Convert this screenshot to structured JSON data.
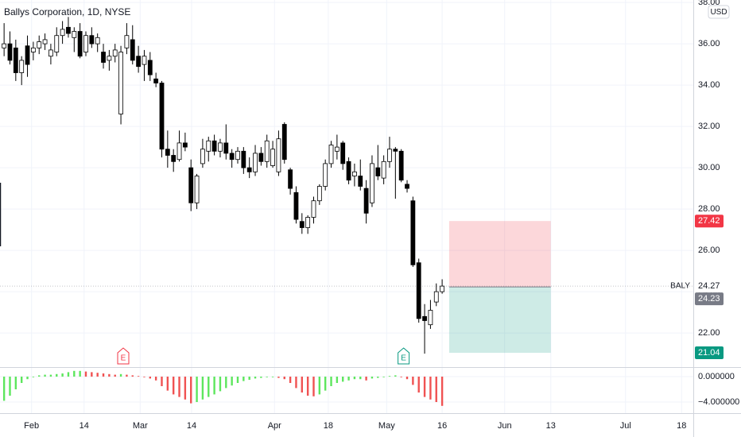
{
  "chart_data": [
    {
      "type": "candlestick",
      "title": "Ballys Corporation, 1D, NYSE",
      "currency": "USD",
      "symbol": "BALY",
      "last_price": 24.27,
      "up_color": "#ffffff",
      "down_color": "#000000",
      "outline_color": "#000000",
      "grid": true,
      "x": [
        0,
        1,
        2,
        3,
        4,
        5,
        6,
        7,
        8,
        9,
        10,
        11,
        12,
        13,
        14,
        15,
        16,
        17,
        18,
        19,
        20,
        21,
        22,
        23,
        24,
        25,
        26,
        27,
        28,
        29,
        30,
        31,
        32,
        33,
        34,
        35,
        36,
        37,
        38,
        39,
        40,
        41,
        42,
        43,
        44,
        45,
        46,
        47,
        48,
        49,
        50,
        51,
        52,
        53,
        54,
        55,
        56,
        57,
        58,
        59,
        60,
        61,
        62,
        63,
        64,
        65,
        66,
        67,
        68,
        69,
        70,
        71,
        72,
        73,
        74,
        75
      ],
      "open": [
        35.8,
        36.0,
        35.8,
        34.6,
        35.9,
        35.6,
        35.8,
        36.0,
        35.4,
        35.6,
        36.4,
        36.8,
        36.3,
        36.6,
        35.6,
        36.4,
        36.0,
        35.6,
        35.2,
        35.4,
        32.6,
        35.8,
        36.2,
        35.4,
        35.0,
        35.2,
        34.3,
        34.1,
        30.9,
        30.6,
        30.4,
        31.2,
        30.0,
        28.3,
        30.2,
        30.8,
        31.3,
        30.8,
        31.2,
        30.7,
        30.4,
        30.8,
        30.0,
        29.8,
        30.7,
        30.3,
        30.1,
        29.8,
        32.1,
        29.9,
        28.8,
        27.4,
        27.1,
        27.6,
        28.4,
        29.1,
        30.2,
        30.8,
        31.2,
        30.3,
        29.6,
        29.6,
        29.0,
        28.3,
        30.0,
        29.5,
        30.3,
        30.9,
        30.8,
        29.2,
        28.4,
        25.4,
        22.8,
        22.4,
        23.5,
        24.0
      ],
      "high": [
        37.0,
        36.6,
        36.2,
        35.4,
        36.4,
        36.1,
        36.4,
        36.5,
        36.0,
        36.8,
        37.1,
        37.3,
        36.8,
        37.0,
        36.6,
        36.8,
        36.5,
        36.0,
        35.7,
        36.0,
        35.9,
        37.0,
        36.9,
        35.9,
        35.7,
        35.6,
        34.6,
        34.2,
        31.8,
        30.9,
        31.8,
        31.7,
        30.4,
        29.7,
        31.4,
        31.5,
        31.6,
        31.4,
        32.1,
        30.9,
        31.0,
        31.0,
        30.5,
        31.1,
        31.0,
        31.6,
        31.3,
        31.8,
        32.2,
        30.0,
        29.1,
        27.8,
        27.7,
        28.6,
        29.2,
        30.4,
        31.3,
        31.6,
        31.3,
        30.5,
        30.2,
        30.4,
        29.4,
        30.6,
        31.1,
        30.6,
        31.5,
        31.0,
        30.9,
        29.4,
        28.6,
        25.6,
        23.4,
        23.6,
        24.4,
        24.6
      ],
      "low": [
        35.4,
        35.0,
        34.2,
        34.0,
        34.4,
        35.2,
        35.5,
        35.7,
        35.0,
        35.4,
        36.0,
        36.3,
        35.6,
        35.3,
        35.4,
        35.8,
        35.6,
        34.8,
        34.7,
        35.1,
        32.1,
        35.5,
        35.0,
        34.6,
        34.2,
        34.2,
        33.9,
        30.5,
        30.0,
        29.8,
        30.3,
        30.8,
        27.9,
        28.0,
        30.0,
        30.3,
        30.6,
        30.5,
        30.4,
        30.0,
        30.2,
        29.7,
        29.5,
        29.6,
        30.1,
        30.0,
        30.0,
        29.6,
        30.2,
        28.7,
        27.3,
        26.8,
        26.8,
        27.3,
        28.2,
        28.9,
        30.0,
        30.4,
        29.9,
        29.2,
        29.1,
        28.9,
        27.3,
        28.1,
        29.4,
        29.2,
        30.0,
        28.5,
        29.3,
        28.8,
        25.2,
        22.5,
        21.0,
        22.2,
        23.3,
        23.9
      ],
      "close": [
        36.0,
        35.2,
        34.6,
        35.2,
        35.0,
        35.8,
        36.1,
        36.2,
        35.7,
        36.4,
        36.7,
        36.5,
        36.6,
        35.4,
        36.4,
        36.0,
        36.3,
        35.1,
        35.4,
        35.7,
        35.6,
        36.4,
        35.2,
        34.9,
        35.4,
        34.5,
        34.1,
        30.9,
        30.6,
        30.3,
        31.2,
        31.0,
        28.3,
        29.6,
        30.9,
        31.3,
        30.8,
        31.2,
        30.7,
        30.4,
        30.8,
        30.0,
        29.8,
        30.7,
        30.3,
        31.3,
        30.9,
        31.4,
        30.4,
        29.0,
        27.5,
        27.1,
        27.6,
        28.4,
        29.1,
        30.2,
        31.1,
        31.0,
        30.2,
        29.4,
        29.8,
        29.1,
        27.8,
        30.2,
        29.6,
        30.3,
        30.9,
        30.8,
        29.4,
        29.0,
        25.3,
        22.7,
        22.6,
        23.1,
        24.0,
        24.27
      ],
      "xlim": [
        -0.7,
        118
      ],
      "ylim": [
        20.35,
        38.12
      ],
      "xticks": [
        {
          "value": 4.7,
          "label": "Feb"
        },
        {
          "value": 13.7,
          "label": "14"
        },
        {
          "value": 23.3,
          "label": "Mar"
        },
        {
          "value": 32.1,
          "label": "14"
        },
        {
          "value": 46.3,
          "label": "Apr"
        },
        {
          "value": 55.5,
          "label": "18"
        },
        {
          "value": 65.5,
          "label": "May"
        },
        {
          "value": 75.0,
          "label": "16"
        },
        {
          "value": 85.7,
          "label": "Jun"
        },
        {
          "value": 93.6,
          "label": "13"
        },
        {
          "value": 106.4,
          "label": "Jul"
        },
        {
          "value": 116.0,
          "label": "18"
        }
      ],
      "yticks": [
        {
          "value": 22,
          "label": "22.00"
        },
        {
          "value": 24,
          "label": "24.00"
        },
        {
          "value": 26,
          "label": "26.00"
        },
        {
          "value": 28,
          "label": "28.00"
        },
        {
          "value": 30,
          "label": "30.00"
        },
        {
          "value": 32,
          "label": "32.00"
        },
        {
          "value": 34,
          "label": "34.00"
        },
        {
          "value": 36,
          "label": "36.00"
        },
        {
          "value": 38,
          "label": "38.00"
        }
      ],
      "position": {
        "stop": 27.42,
        "entry": 24.23,
        "target": 21.04,
        "x": [
          76.2,
          93.6
        ],
        "stop_color": "#f23645",
        "target_color": "#089981",
        "entry_color": "#787b86"
      },
      "earnings": [
        {
          "x": 20.4,
          "label": "E",
          "color": "#f23645"
        },
        {
          "x": 68.4,
          "label": "E",
          "color": "#089981"
        }
      ]
    },
    {
      "type": "bar",
      "rise_color": "#5de65d",
      "fall_color": "#f05252",
      "x": [
        0,
        1,
        2,
        3,
        4,
        5,
        6,
        7,
        8,
        9,
        10,
        11,
        12,
        13,
        14,
        15,
        16,
        17,
        18,
        19,
        20,
        21,
        22,
        23,
        24,
        25,
        26,
        27,
        28,
        29,
        30,
        31,
        32,
        33,
        34,
        35,
        36,
        37,
        38,
        39,
        40,
        41,
        42,
        43,
        44,
        45,
        46,
        47,
        48,
        49,
        50,
        51,
        52,
        53,
        54,
        55,
        56,
        57,
        58,
        59,
        60,
        61,
        62,
        63,
        64,
        65,
        66,
        67,
        68,
        69,
        70,
        71,
        72,
        73,
        74,
        75
      ],
      "values": [
        -3.8,
        -3.0,
        -2.0,
        -1.0,
        -0.4,
        -0.1,
        0.2,
        0.3,
        0.3,
        0.4,
        0.5,
        0.7,
        0.9,
        0.9,
        0.8,
        0.7,
        0.6,
        0.5,
        0.4,
        0.3,
        0.4,
        0.3,
        0.2,
        0.1,
        -0.1,
        -0.3,
        -0.6,
        -1.5,
        -2.2,
        -2.8,
        -3.2,
        -3.6,
        -4.2,
        -4.0,
        -3.6,
        -3.2,
        -2.8,
        -2.3,
        -1.8,
        -1.4,
        -1.0,
        -0.7,
        -0.5,
        -0.3,
        -0.2,
        -0.1,
        -0.1,
        -0.2,
        -0.4,
        -1.0,
        -1.8,
        -2.5,
        -3.0,
        -3.1,
        -2.8,
        -2.2,
        -1.5,
        -1.0,
        -0.8,
        -0.6,
        -0.4,
        -0.4,
        -0.6,
        -0.3,
        -0.2,
        -0.1,
        0.1,
        0.2,
        -0.1,
        -0.4,
        -1.3,
        -2.5,
        -3.2,
        -3.6,
        -4.0,
        -4.6
      ],
      "xlim": [
        -0.7,
        118
      ],
      "ylim": [
        -5.75,
        1.5
      ],
      "yticks": [
        {
          "value": 0,
          "label": "0.000000"
        },
        {
          "value": -4,
          "label": "−4.000000"
        }
      ]
    }
  ]
}
